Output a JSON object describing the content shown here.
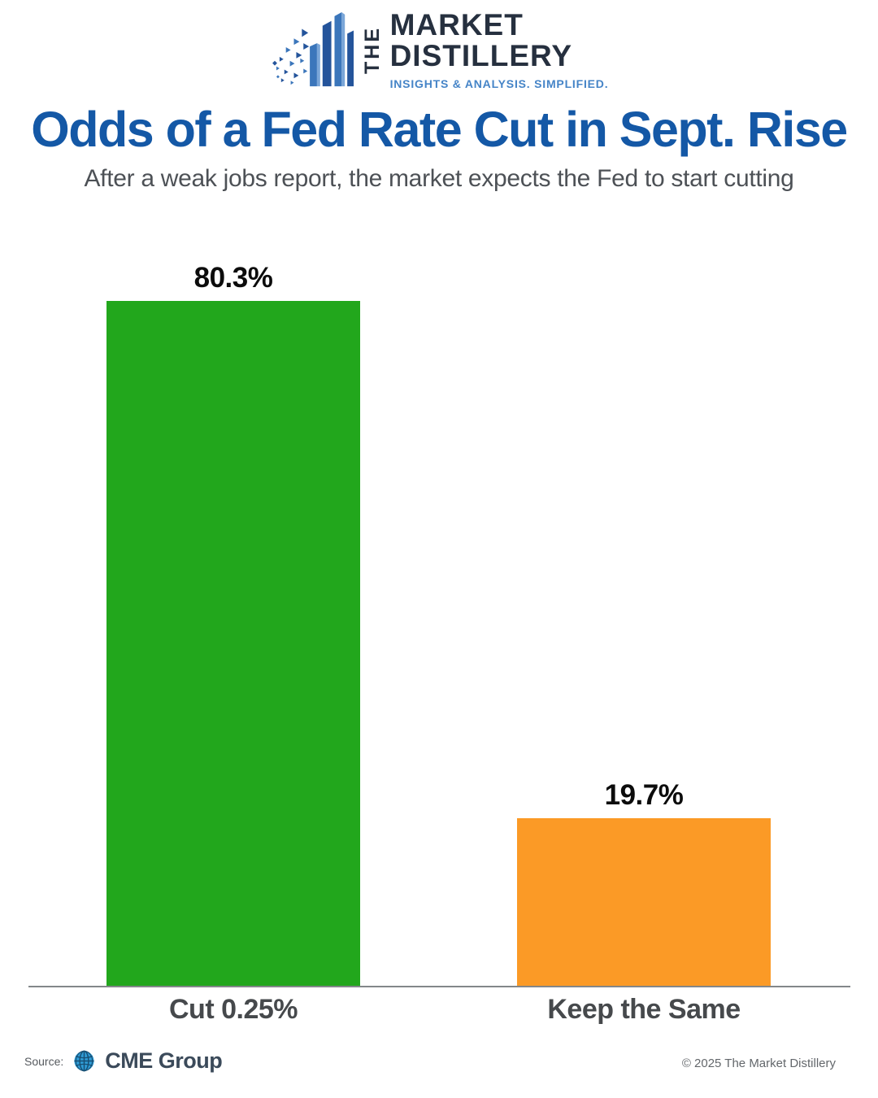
{
  "logo": {
    "the": "THE",
    "line1": "MARKET",
    "line2": "DISTILLERY",
    "tagline": "INSIGHTS & ANALYSIS. SIMPLIFIED.",
    "navy": "#26303f",
    "blue": "#4584c7"
  },
  "header": {
    "title": "Odds of a Fed Rate Cut in Sept. Rise",
    "subtitle": "After a weak jobs report, the market expects the Fed to start cutting",
    "title_color": "#1458a6"
  },
  "chart_data": {
    "type": "bar",
    "categories": [
      "Cut 0.25%",
      "Keep the Same"
    ],
    "values": [
      80.3,
      19.7
    ],
    "value_labels": [
      "80.3%",
      "19.7%"
    ],
    "bar_colors": [
      "#22a71c",
      "#fb9a26"
    ],
    "title": "Odds of a Fed Rate Cut in Sept. Rise",
    "subtitle": "After a weak jobs report, the market expects the Fed to start cutting",
    "xlabel": "",
    "ylabel": "",
    "ylim": [
      0,
      100
    ],
    "grid": false,
    "legend": false,
    "axis_color": "#83878a"
  },
  "footer": {
    "source_label": "Source:",
    "source_name": "CME Group",
    "copyright": "© 2025 The Market Distillery"
  }
}
